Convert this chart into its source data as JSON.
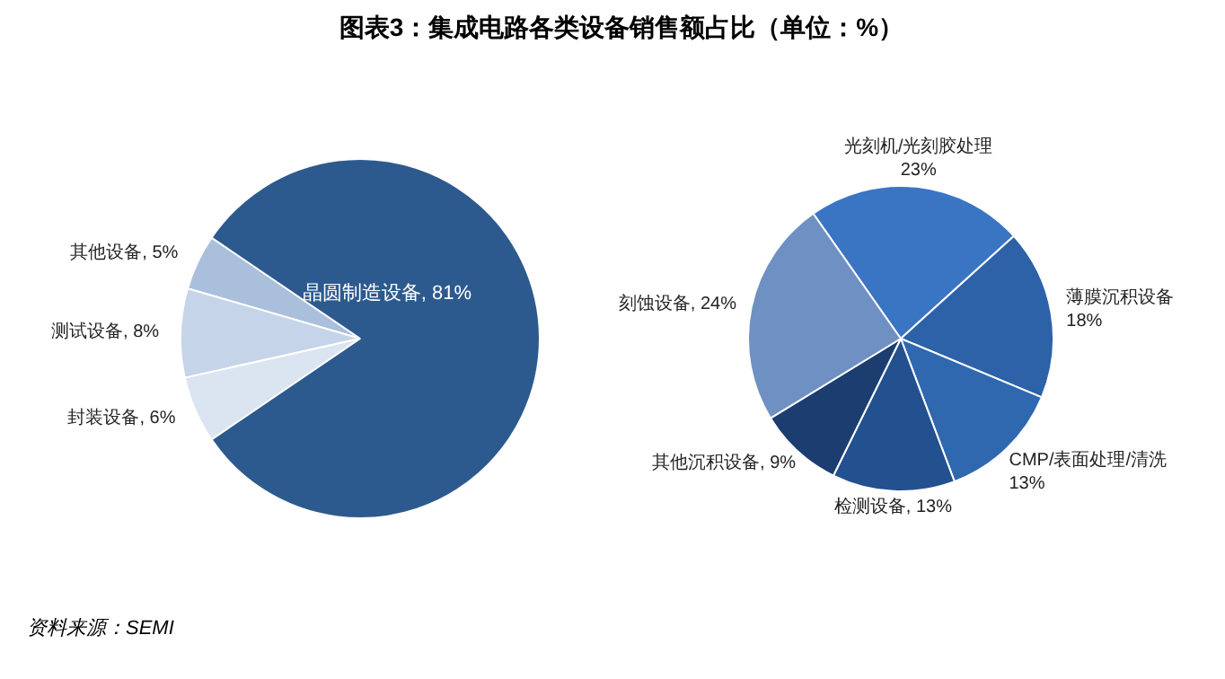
{
  "chart_data": [
    {
      "type": "pie",
      "title": "图表3：集成电路各类设备销售额占比（单位：%）",
      "categories": [
        "其他设备",
        "测试设备",
        "封装设备",
        "晶圆制造设备"
      ],
      "values": [
        5,
        8,
        6,
        81
      ],
      "value_labels": [
        "5%",
        "8%",
        "6%",
        "81%"
      ],
      "colors": [
        "#a9bfdc",
        "#c5d4e9",
        "#dbe4f1",
        "#2d5a8e"
      ],
      "annotations": [
        "资料来源：SEMI"
      ]
    },
    {
      "type": "pie",
      "categories": [
        "光刻机/光刻胶处理",
        "薄膜沉积设备",
        "CMP/表面处理/清洗",
        "检测设备",
        "其他沉积设备",
        "刻蚀设备"
      ],
      "values": [
        23,
        18,
        13,
        13,
        9,
        24
      ],
      "value_labels": [
        "23%",
        "18%",
        "13%",
        "13%",
        "9%",
        "24%"
      ],
      "colors": [
        "#3a75c4",
        "#2d62a8",
        "#3068b0",
        "#23508f",
        "#1c3d70",
        "#6f90c2"
      ]
    }
  ]
}
